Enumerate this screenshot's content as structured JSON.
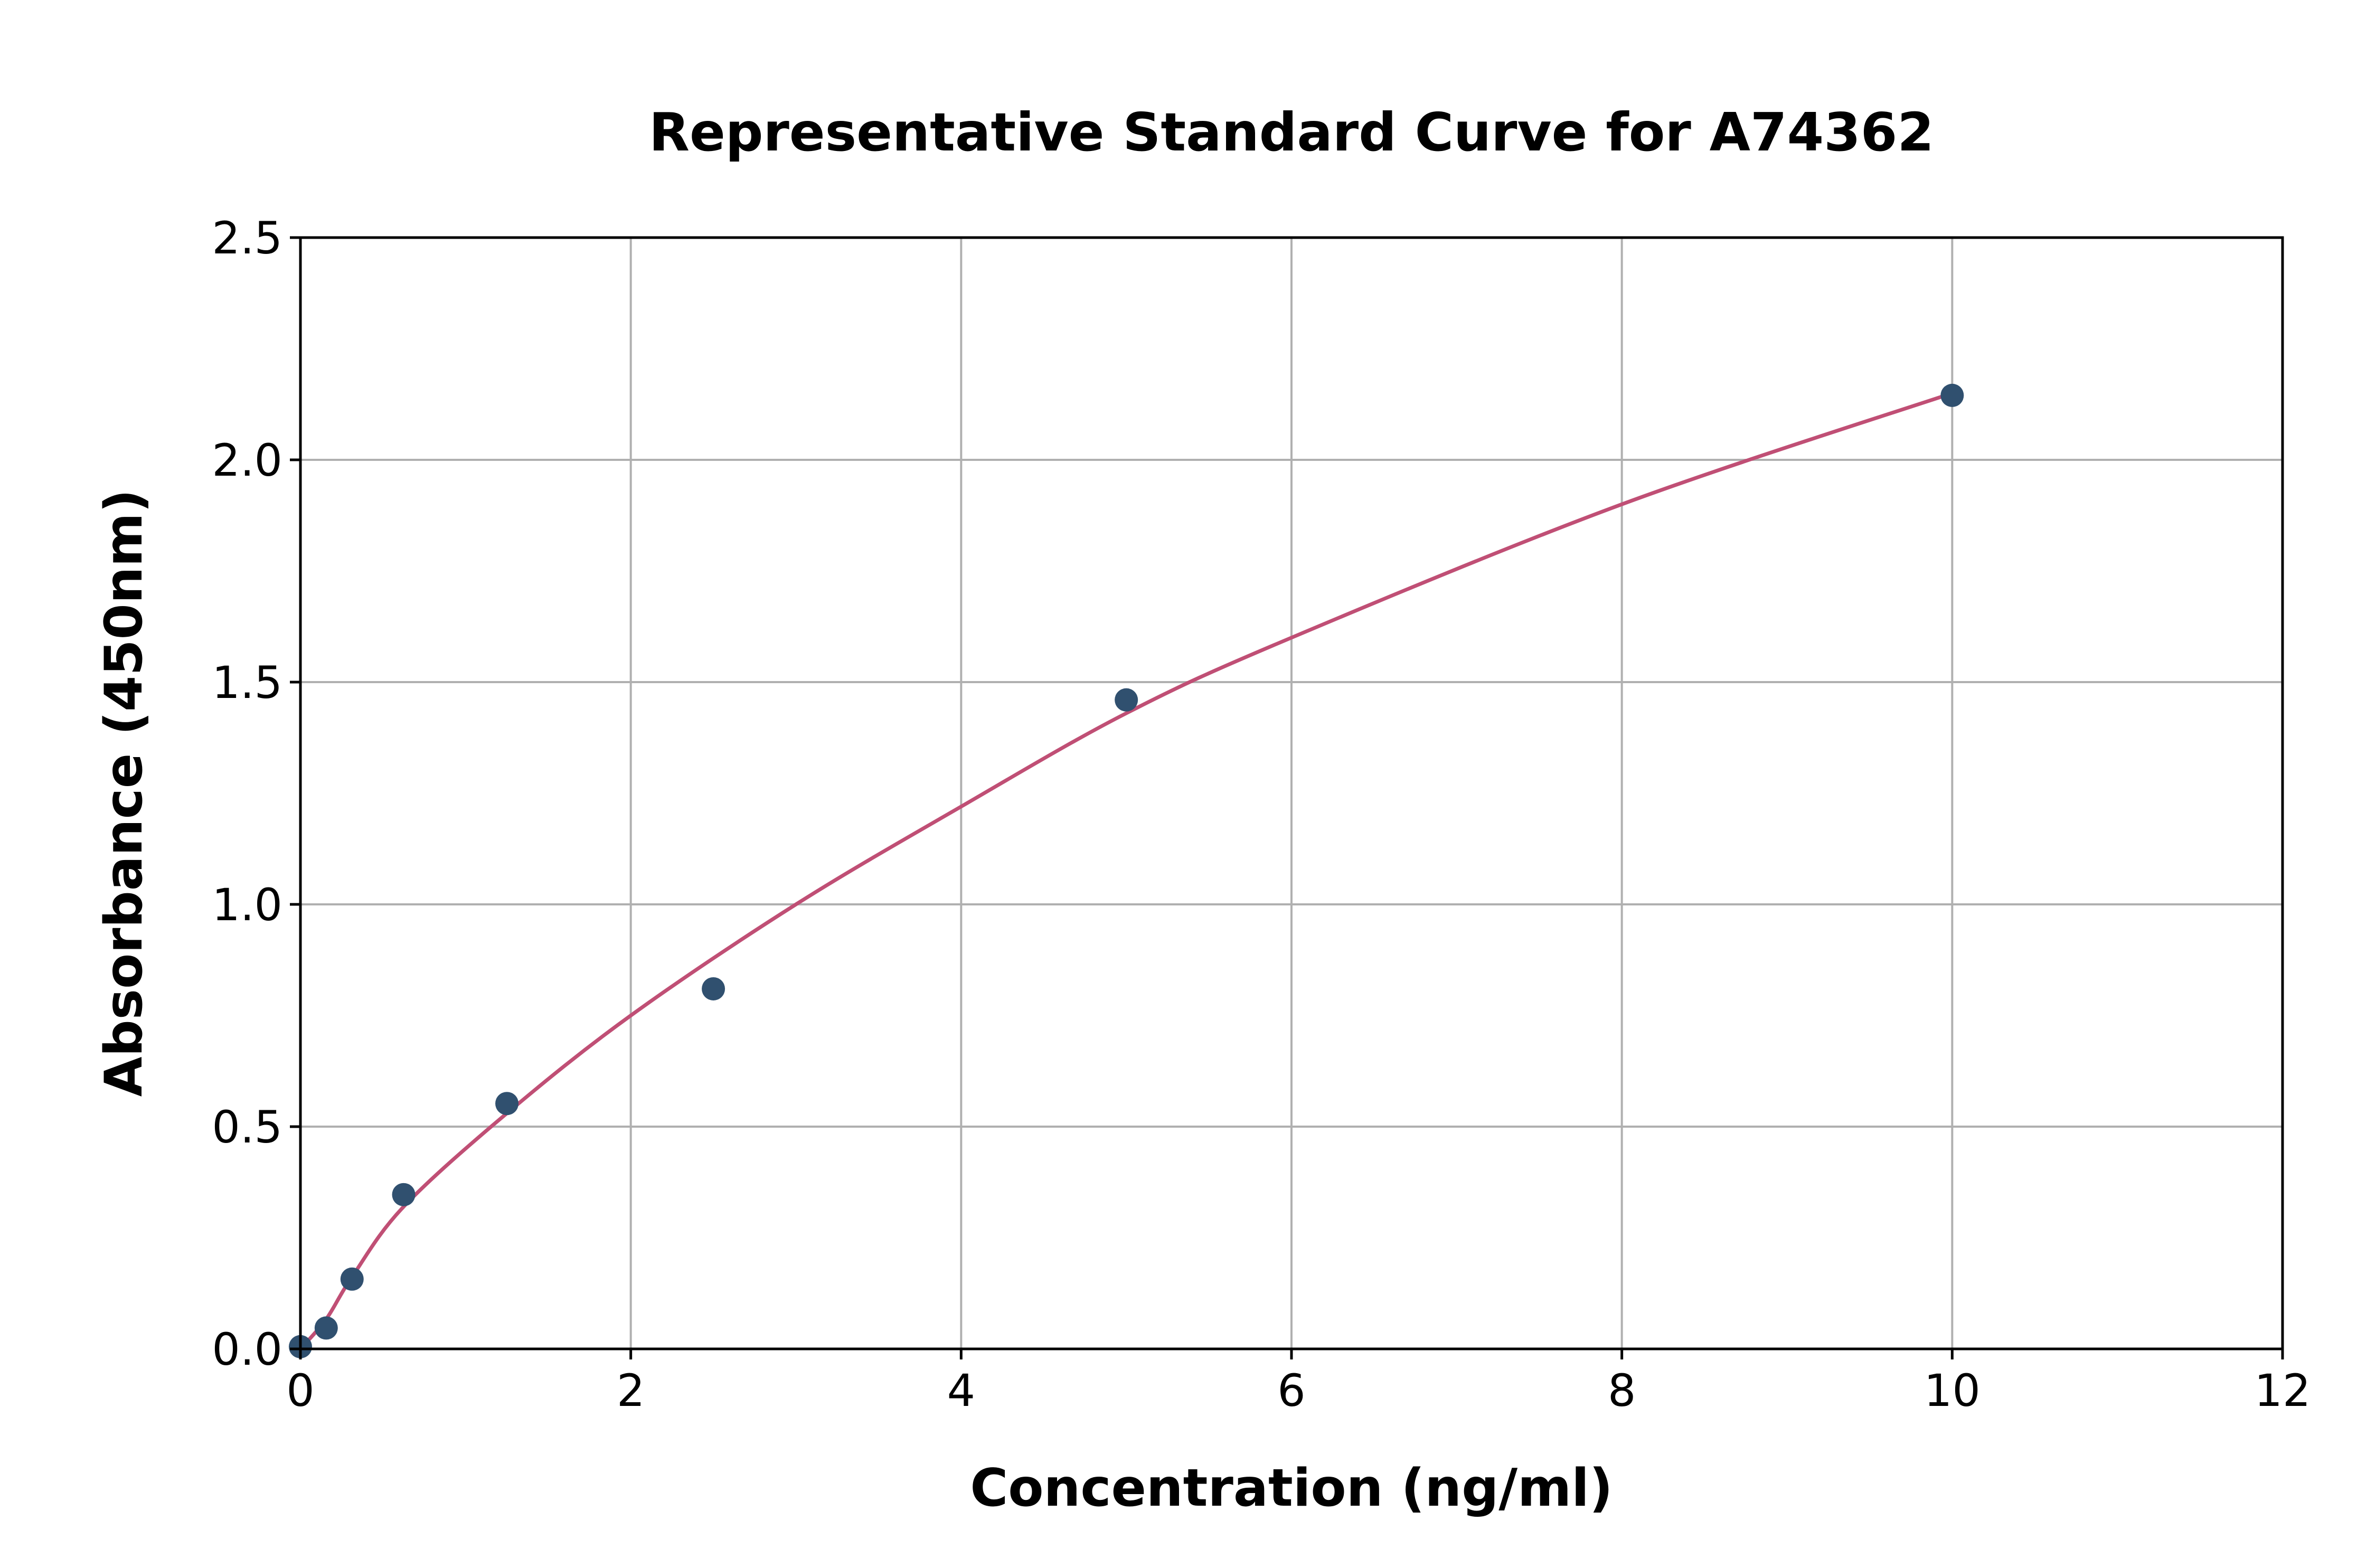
{
  "chart_data": {
    "type": "scatter",
    "title": "Representative Standard Curve for A74362",
    "xlabel": "Concentration (ng/ml)",
    "ylabel": "Absorbance (450nm)",
    "xlim": [
      0,
      12
    ],
    "ylim": [
      0,
      2.5
    ],
    "xticks": [
      "0",
      "2",
      "4",
      "6",
      "8",
      "10",
      "12"
    ],
    "yticks": [
      "0.0",
      "0.5",
      "1.0",
      "1.5",
      "2.0",
      "2.5"
    ],
    "grid": true,
    "points": {
      "x": [
        0,
        0.156,
        0.3125,
        0.625,
        1.25,
        2.5,
        5,
        10
      ],
      "y": [
        0.005,
        0.047,
        0.157,
        0.347,
        0.552,
        0.81,
        1.46,
        2.145
      ]
    },
    "fit_curve": {
      "x": [
        0,
        0.156,
        0.3125,
        0.625,
        1.25,
        2,
        3,
        4,
        5,
        6,
        8,
        10
      ],
      "y": [
        0,
        0.067,
        0.162,
        0.32,
        0.53,
        0.75,
        1.0,
        1.22,
        1.43,
        1.6,
        1.9,
        2.15
      ]
    },
    "colors": {
      "points": "#30506f",
      "curve": "#c04f75",
      "grid": "#b0b0b0"
    }
  }
}
